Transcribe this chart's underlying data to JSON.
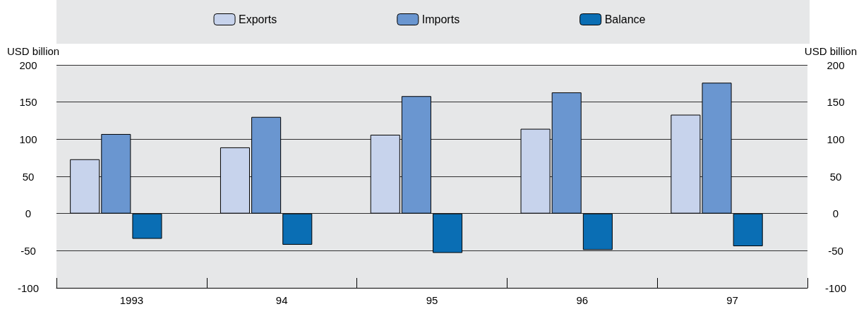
{
  "chart_data": {
    "type": "bar",
    "ylabel": "USD billion",
    "y2label": "USD billion",
    "categories": [
      "1993",
      "94",
      "95",
      "96",
      "97"
    ],
    "series": [
      {
        "name": "Exports",
        "color": "#c7d3ec",
        "values": [
          73,
          89,
          106,
          114,
          133
        ]
      },
      {
        "name": "Imports",
        "color": "#6a96d0",
        "values": [
          107,
          130,
          158,
          163,
          176
        ]
      },
      {
        "name": "Balance",
        "color": "#0a6eb4",
        "values": [
          -34,
          -42,
          -53,
          -49,
          -44
        ]
      }
    ],
    "ylim": [
      -100,
      200
    ],
    "yticks": [
      -100,
      -50,
      0,
      50,
      100,
      150,
      200
    ],
    "y2lim": [
      -100,
      200
    ],
    "y2ticks": [
      -100,
      -50,
      0,
      50,
      100,
      150,
      200
    ],
    "grid": "y",
    "legend": "top"
  }
}
